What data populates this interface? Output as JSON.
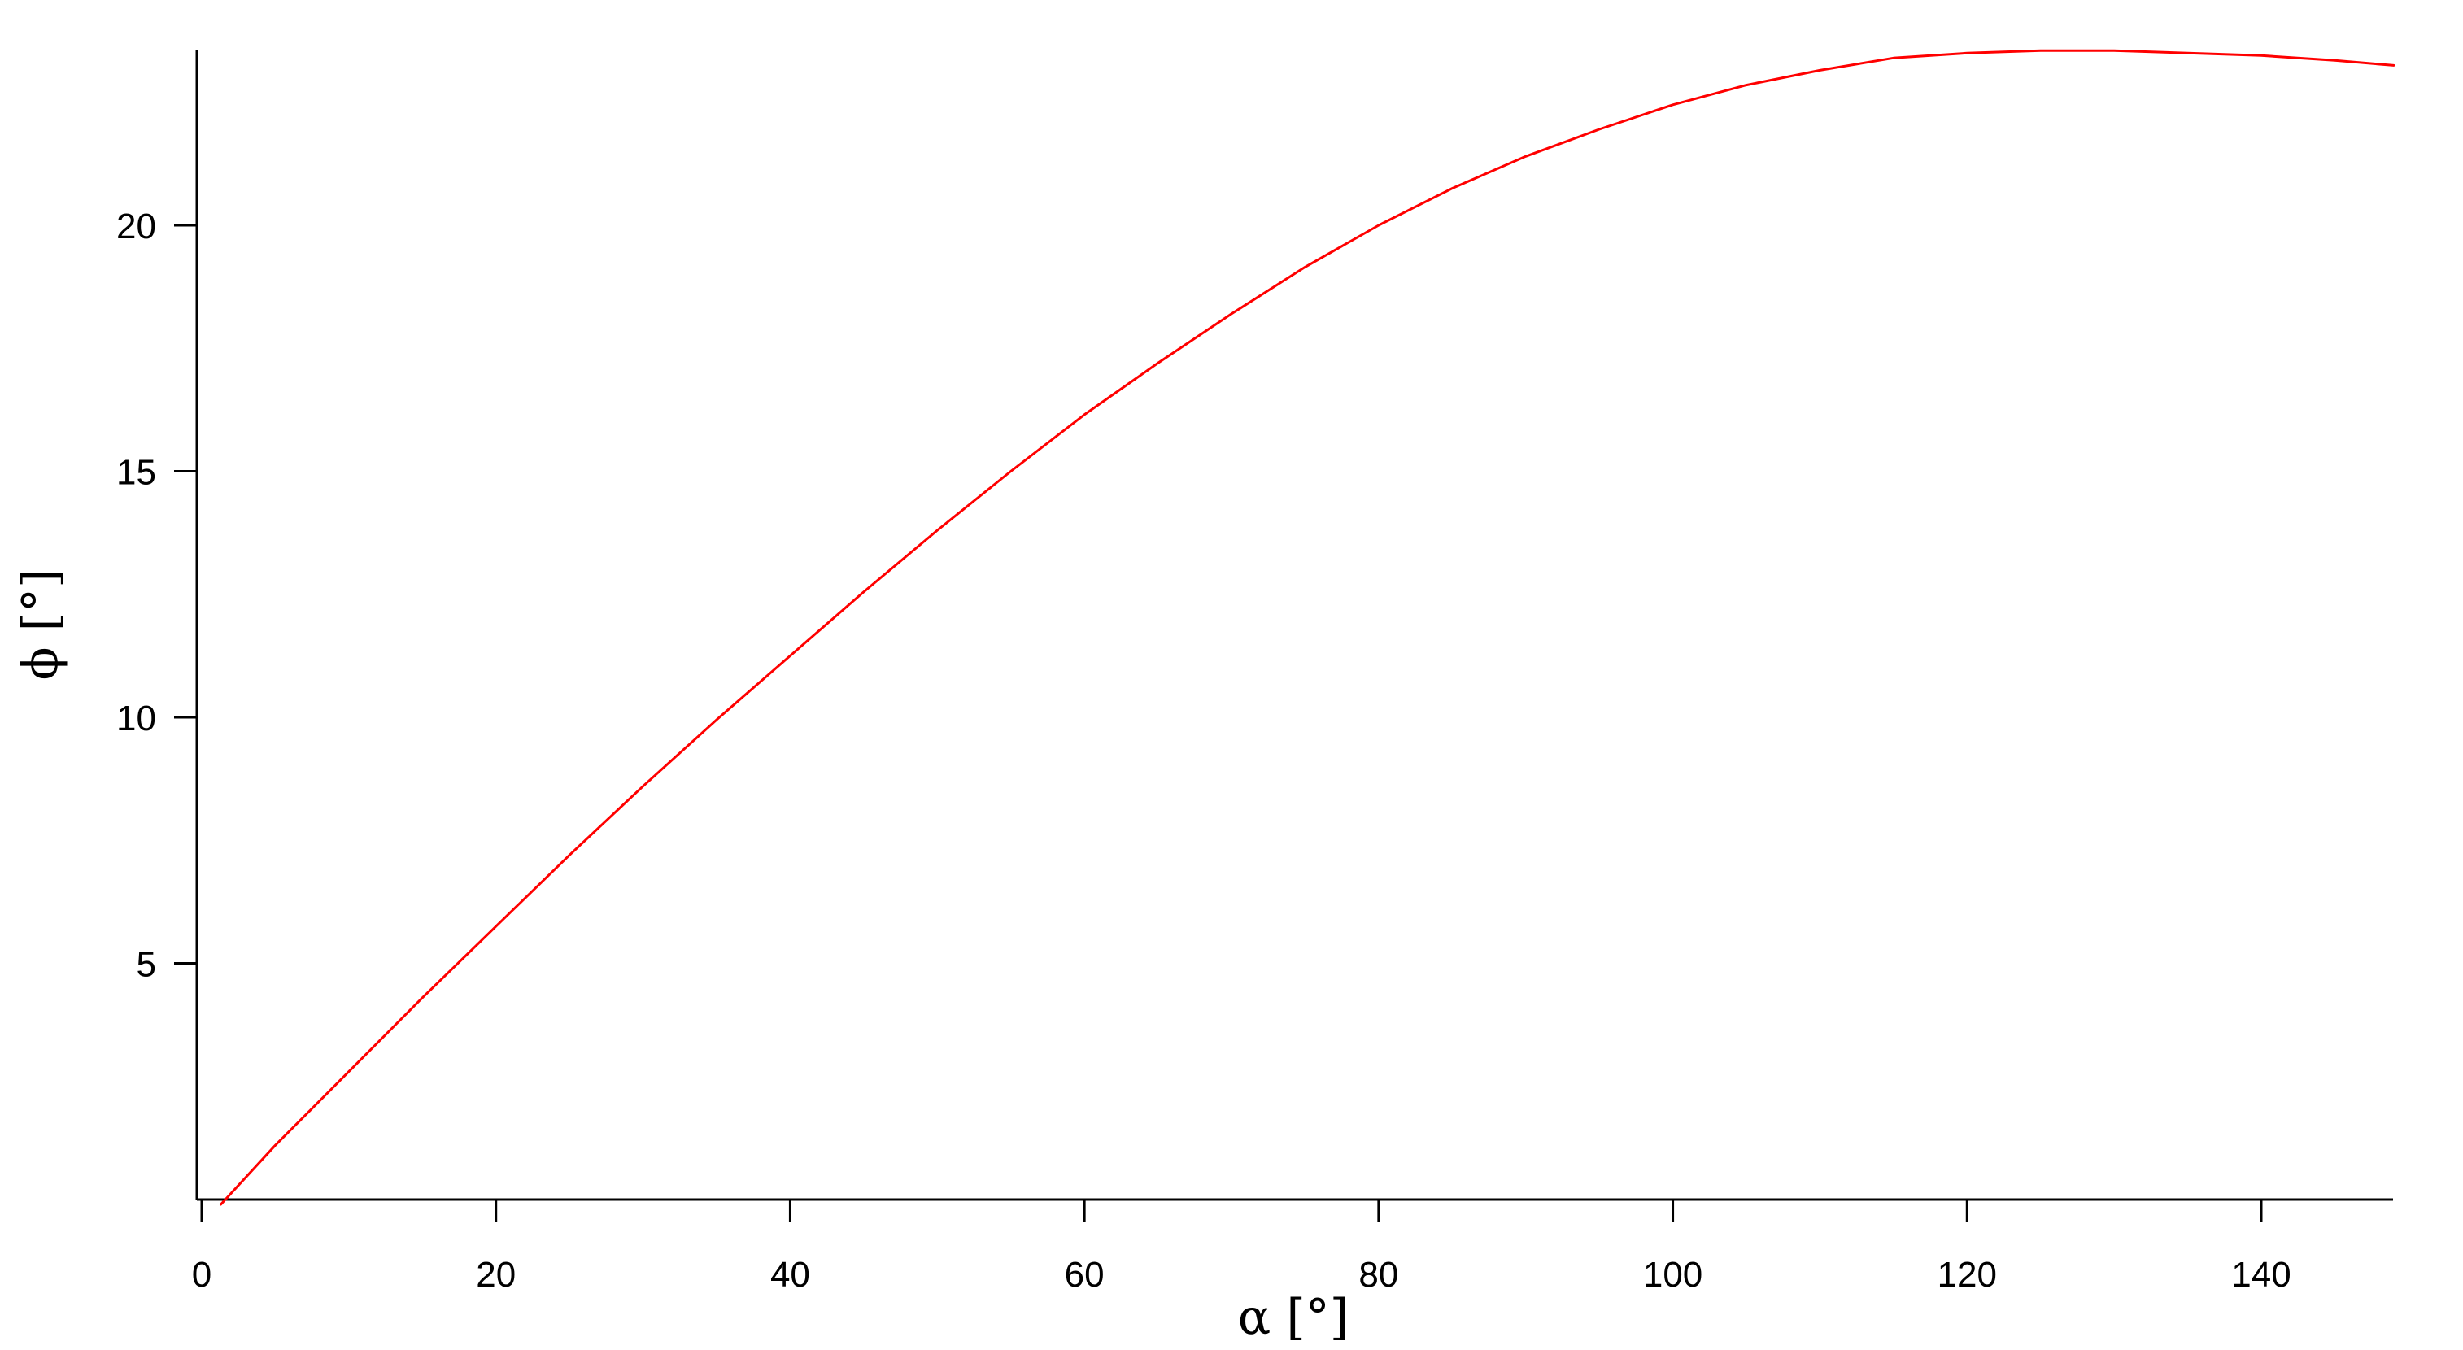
{
  "chart_data": {
    "type": "line",
    "title": "",
    "xlabel": "α [°]",
    "ylabel": "ϕ [°]",
    "xlim": [
      0,
      149
    ],
    "ylim": [
      0,
      23.5
    ],
    "xticks": [
      0,
      20,
      40,
      60,
      80,
      100,
      120,
      140
    ],
    "yticks": [
      5,
      10,
      15,
      20
    ],
    "grid": false,
    "legend": "none",
    "series": [
      {
        "color": "#ff0000",
        "x": [
          1.3,
          5,
          10,
          15,
          20,
          25,
          30,
          35,
          40,
          45,
          50,
          55,
          60,
          65,
          70,
          75,
          80,
          85,
          90,
          95,
          100,
          105,
          110,
          115,
          120,
          125,
          130,
          135,
          140,
          145,
          149
        ],
        "y": [
          0.1,
          1.3,
          2.8,
          4.3,
          5.75,
          7.2,
          8.6,
          9.95,
          11.25,
          12.55,
          13.8,
          15.0,
          16.15,
          17.2,
          18.2,
          19.15,
          20.0,
          20.75,
          21.4,
          21.95,
          22.45,
          22.85,
          23.15,
          23.4,
          23.5,
          23.55,
          23.55,
          23.5,
          23.45,
          23.35,
          23.25
        ]
      }
    ]
  }
}
